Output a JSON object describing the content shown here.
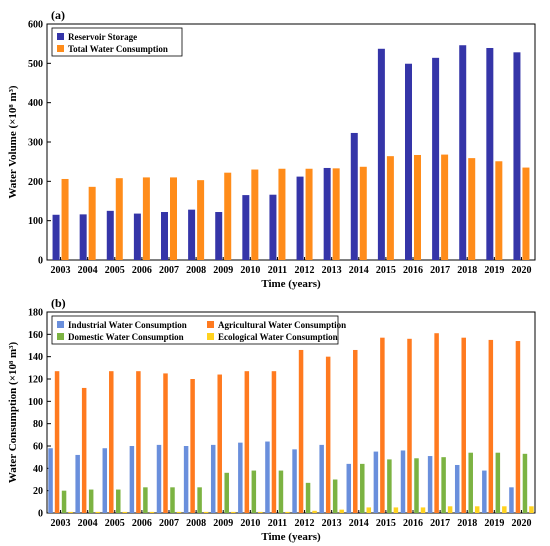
{
  "colors": {
    "reservoir": "#3535a8",
    "total": "#ff8c1a",
    "industrial": "#6a8fdc",
    "agricultural": "#ff7a1f",
    "domestic": "#7cb342",
    "ecological": "#ffd21f"
  },
  "chart_data": [
    {
      "type": "bar",
      "panel_label": "(a)",
      "categories": [
        "2003",
        "2004",
        "2005",
        "2006",
        "2007",
        "2008",
        "2009",
        "2010",
        "2011",
        "2012",
        "2013",
        "2014",
        "2015",
        "2016",
        "2017",
        "2018",
        "2019",
        "2020"
      ],
      "series": [
        {
          "name": "Reservoir Storage",
          "color_key": "reservoir",
          "values": [
            115,
            116,
            125,
            118,
            122,
            128,
            122,
            165,
            166,
            212,
            234,
            323,
            537,
            499,
            514,
            546,
            539,
            528
          ]
        },
        {
          "name": "Total Water Consumption",
          "color_key": "total",
          "values": [
            206,
            186,
            208,
            210,
            210,
            203,
            222,
            230,
            232,
            232,
            233,
            237,
            264,
            267,
            268,
            259,
            251,
            235
          ]
        }
      ],
      "xlabel": "Time (years)",
      "ylabel": "Water Volume (×10⁸ m³)",
      "ylim": [
        0,
        600
      ],
      "yticks": [
        0,
        100,
        200,
        300,
        400,
        500,
        600
      ],
      "legend": "top-left",
      "grid": false
    },
    {
      "type": "bar",
      "panel_label": "(b)",
      "categories": [
        "2003",
        "2004",
        "2005",
        "2006",
        "2007",
        "2008",
        "2009",
        "2010",
        "2011",
        "2012",
        "2013",
        "2014",
        "2015",
        "2016",
        "2017",
        "2018",
        "2019",
        "2020"
      ],
      "series": [
        {
          "name": "Industrial Water Consumption",
          "color_key": "industrial",
          "values": [
            58,
            52,
            58,
            60,
            61,
            60,
            61,
            63,
            64,
            57,
            61,
            44,
            55,
            56,
            51,
            43,
            38,
            23
          ]
        },
        {
          "name": "Agricultural Water Consumption",
          "color_key": "agricultural",
          "values": [
            127,
            112,
            127,
            127,
            125,
            120,
            124,
            127,
            127,
            146,
            140,
            146,
            157,
            156,
            161,
            157,
            155,
            154
          ]
        },
        {
          "name": "Domestic Water Consumption",
          "color_key": "domestic",
          "values": [
            20,
            21,
            21,
            23,
            23,
            23,
            36,
            38,
            38,
            27,
            30,
            44,
            48,
            49,
            50,
            54,
            54,
            53
          ]
        },
        {
          "name": "Ecological Water Consumption",
          "color_key": "ecological",
          "values": [
            1,
            1,
            1,
            1,
            1,
            1,
            1,
            1,
            1,
            2,
            3,
            5,
            5,
            5,
            6,
            6,
            6,
            6
          ]
        }
      ],
      "xlabel": "Time (years)",
      "ylabel": "Water Consumption (×10⁸ m³)",
      "ylim": [
        0,
        180
      ],
      "yticks": [
        0,
        20,
        40,
        60,
        80,
        100,
        120,
        140,
        160,
        180
      ],
      "legend": "top",
      "grid": false
    }
  ]
}
